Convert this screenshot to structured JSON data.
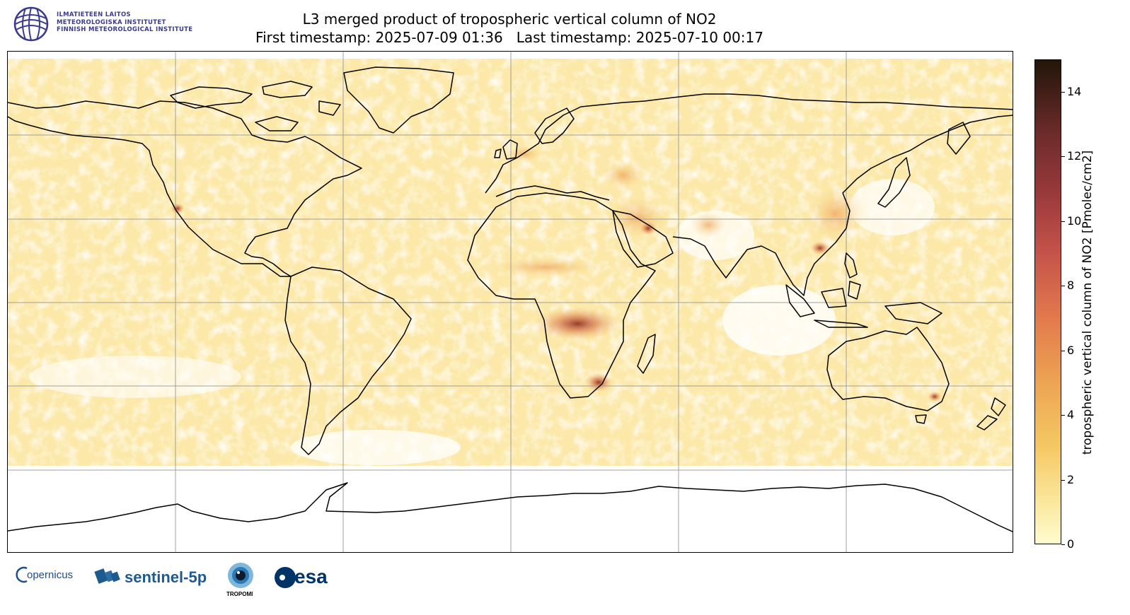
{
  "header": {
    "org_lines": [
      "ILMATIETEEN LAITOS",
      "METEOROLOGISKA INSTITUTET",
      "FINNISH METEOROLOGICAL INSTITUTE"
    ],
    "title_line1": "L3 merged product of tropospheric vertical column of NO2",
    "title_line2": "First timestamp: 2025-07-09 01:36   Last timestamp: 2025-07-10 00:17"
  },
  "colorbar": {
    "label": "tropospheric vertical column of NO2 [Pmolec/cm2]",
    "ticks": [
      "0",
      "2",
      "4",
      "6",
      "8",
      "10",
      "12",
      "14"
    ],
    "range": [
      0,
      15
    ],
    "colors": [
      "#fffbd0",
      "#f5c864",
      "#e1784c",
      "#9b3a3c",
      "#231709"
    ]
  },
  "map": {
    "projection": "Plate Carree",
    "gridlines": true,
    "background_color": "#fdf3bf"
  },
  "logos": {
    "copernicus": "opernicus",
    "sentinel": "sentinel-5p",
    "tropomi": "TROPOMI",
    "esa": "esa"
  }
}
